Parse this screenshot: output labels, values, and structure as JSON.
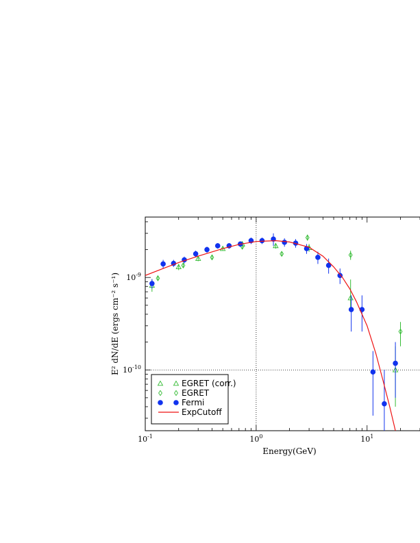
{
  "chart_data": {
    "type": "scatter",
    "xlabel": "Energy(GeV)",
    "ylabel": "E² dN/dE (ergs cm⁻² s⁻¹)",
    "x_scale": "log",
    "y_scale": "log",
    "xlim": [
      0.1,
      30
    ],
    "ylim": [
      2.2e-11,
      4.5e-09
    ],
    "x_ticks": [
      {
        "value": 0.1,
        "base": "10",
        "exp": "-1"
      },
      {
        "value": 1,
        "base": "10",
        "exp": "0"
      },
      {
        "value": 10,
        "base": "10",
        "exp": "1"
      }
    ],
    "y_ticks": [
      {
        "value": 1e-09,
        "base": "10",
        "exp": "-9"
      },
      {
        "value": 1e-10,
        "base": "10",
        "exp": "-10"
      }
    ],
    "reference_lines": {
      "x": 1,
      "y": 1e-10,
      "style": "dotted"
    },
    "legend_position": "lower-left",
    "series": [
      {
        "name": "EGRET (corr.)",
        "marker": "triangle",
        "color": "#33bb33",
        "points": [
          {
            "x": 0.115,
            "y": 8.2e-10,
            "ylo": 7e-10,
            "yhi": 9.6e-10
          },
          {
            "x": 0.2,
            "y": 1.3e-09,
            "ylo": 1.2e-09,
            "yhi": 1.4e-09
          },
          {
            "x": 0.3,
            "y": 1.6e-09,
            "ylo": 1.5e-09,
            "yhi": 1.7e-09
          },
          {
            "x": 0.5,
            "y": 2.05e-09,
            "ylo": 1.95e-09,
            "yhi": 2.15e-09
          },
          {
            "x": 0.75,
            "y": 2.3e-09,
            "ylo": 2.2e-09,
            "yhi": 2.4e-09
          },
          {
            "x": 1.5,
            "y": 2.2e-09,
            "ylo": 2.05e-09,
            "yhi": 2.35e-09
          },
          {
            "x": 3.0,
            "y": 2.1e-09,
            "ylo": 1.9e-09,
            "yhi": 2.3e-09
          },
          {
            "x": 7.1,
            "y": 6e-10,
            "ylo": 4.5e-10,
            "yhi": 9.5e-10
          },
          {
            "x": 18.0,
            "y": 1e-10,
            "ylo": 4e-11,
            "yhi": 1.8e-10
          }
        ]
      },
      {
        "name": "EGRET",
        "marker": "diamond",
        "color": "#33bb33",
        "points": [
          {
            "x": 0.13,
            "y": 9.8e-10,
            "ylo": 9.3e-10,
            "yhi": 1.05e-09
          },
          {
            "x": 0.22,
            "y": 1.35e-09,
            "ylo": 1.28e-09,
            "yhi": 1.42e-09
          },
          {
            "x": 0.4,
            "y": 1.65e-09,
            "ylo": 1.55e-09,
            "yhi": 1.75e-09
          },
          {
            "x": 0.75,
            "y": 2.15e-09,
            "ylo": 2.05e-09,
            "yhi": 2.25e-09
          },
          {
            "x": 1.7,
            "y": 1.8e-09,
            "ylo": 1.7e-09,
            "yhi": 1.9e-09
          },
          {
            "x": 2.9,
            "y": 2.7e-09,
            "ylo": 2.5e-09,
            "yhi": 2.9e-09
          },
          {
            "x": 7.1,
            "y": 1.75e-09,
            "ylo": 1.55e-09,
            "yhi": 1.95e-09
          },
          {
            "x": 20.0,
            "y": 2.6e-10,
            "ylo": 1.8e-10,
            "yhi": 3.3e-10
          }
        ]
      },
      {
        "name": "Fermi",
        "marker": "circle",
        "color": "#1133ee",
        "points": [
          {
            "x": 0.115,
            "y": 8.6e-10,
            "ylo": 7.6e-10,
            "yhi": 9.6e-10
          },
          {
            "x": 0.145,
            "y": 1.4e-09,
            "ylo": 1.25e-09,
            "yhi": 1.55e-09
          },
          {
            "x": 0.18,
            "y": 1.42e-09,
            "ylo": 1.3e-09,
            "yhi": 1.55e-09
          },
          {
            "x": 0.225,
            "y": 1.55e-09,
            "ylo": 1.42e-09,
            "yhi": 1.68e-09
          },
          {
            "x": 0.285,
            "y": 1.8e-09,
            "ylo": 1.65e-09,
            "yhi": 1.95e-09
          },
          {
            "x": 0.36,
            "y": 2e-09,
            "ylo": 1.85e-09,
            "yhi": 2.15e-09
          },
          {
            "x": 0.45,
            "y": 2.2e-09,
            "ylo": 2.05e-09,
            "yhi": 2.35e-09
          },
          {
            "x": 0.57,
            "y": 2.2e-09,
            "ylo": 2.05e-09,
            "yhi": 2.35e-09
          },
          {
            "x": 0.72,
            "y": 2.3e-09,
            "ylo": 2.15e-09,
            "yhi": 2.45e-09
          },
          {
            "x": 0.9,
            "y": 2.5e-09,
            "ylo": 2.3e-09,
            "yhi": 2.7e-09
          },
          {
            "x": 1.13,
            "y": 2.5e-09,
            "ylo": 2.3e-09,
            "yhi": 2.7e-09
          },
          {
            "x": 1.43,
            "y": 2.6e-09,
            "ylo": 2.2e-09,
            "yhi": 3e-09
          },
          {
            "x": 1.8,
            "y": 2.4e-09,
            "ylo": 2.15e-09,
            "yhi": 2.65e-09
          },
          {
            "x": 2.27,
            "y": 2.35e-09,
            "ylo": 2.1e-09,
            "yhi": 2.6e-09
          },
          {
            "x": 2.85,
            "y": 2.05e-09,
            "ylo": 1.8e-09,
            "yhi": 2.3e-09
          },
          {
            "x": 3.6,
            "y": 1.65e-09,
            "ylo": 1.4e-09,
            "yhi": 1.9e-09
          },
          {
            "x": 4.5,
            "y": 1.35e-09,
            "ylo": 1.1e-09,
            "yhi": 1.6e-09
          },
          {
            "x": 5.7,
            "y": 1.05e-09,
            "ylo": 8.5e-10,
            "yhi": 1.25e-09
          },
          {
            "x": 7.2,
            "y": 4.5e-10,
            "ylo": 2.6e-10,
            "yhi": 6.4e-10
          },
          {
            "x": 9.0,
            "y": 4.5e-10,
            "ylo": 2.6e-10,
            "yhi": 6.4e-10
          },
          {
            "x": 11.3,
            "y": 9.5e-11,
            "ylo": 3.2e-11,
            "yhi": 1.6e-10
          },
          {
            "x": 14.3,
            "y": 4.3e-11,
            "ylo": 2.2e-11,
            "yhi": 1e-10
          },
          {
            "x": 18.0,
            "y": 1.18e-10,
            "ylo": 5e-11,
            "yhi": 2e-10
          }
        ]
      },
      {
        "name": "ExpCutoff",
        "marker": "line",
        "color": "#ee1111",
        "points": [
          {
            "x": 0.1,
            "y": 1.05e-09
          },
          {
            "x": 0.15,
            "y": 1.27e-09
          },
          {
            "x": 0.2,
            "y": 1.45e-09
          },
          {
            "x": 0.3,
            "y": 1.7e-09
          },
          {
            "x": 0.5,
            "y": 2.05e-09
          },
          {
            "x": 0.7,
            "y": 2.28e-09
          },
          {
            "x": 1.0,
            "y": 2.45e-09
          },
          {
            "x": 1.5,
            "y": 2.5e-09
          },
          {
            "x": 2.0,
            "y": 2.42e-09
          },
          {
            "x": 3.0,
            "y": 2.12e-09
          },
          {
            "x": 4.0,
            "y": 1.7e-09
          },
          {
            "x": 5.0,
            "y": 1.3e-09
          },
          {
            "x": 6.0,
            "y": 1e-09
          },
          {
            "x": 7.0,
            "y": 7.5e-10
          },
          {
            "x": 8.0,
            "y": 5.5e-10
          },
          {
            "x": 10.0,
            "y": 3e-10
          },
          {
            "x": 12.0,
            "y": 1.5e-10
          },
          {
            "x": 14.0,
            "y": 7.5e-11
          },
          {
            "x": 16.0,
            "y": 4e-11
          },
          {
            "x": 18.0,
            "y": 2.2e-11
          }
        ]
      }
    ]
  }
}
